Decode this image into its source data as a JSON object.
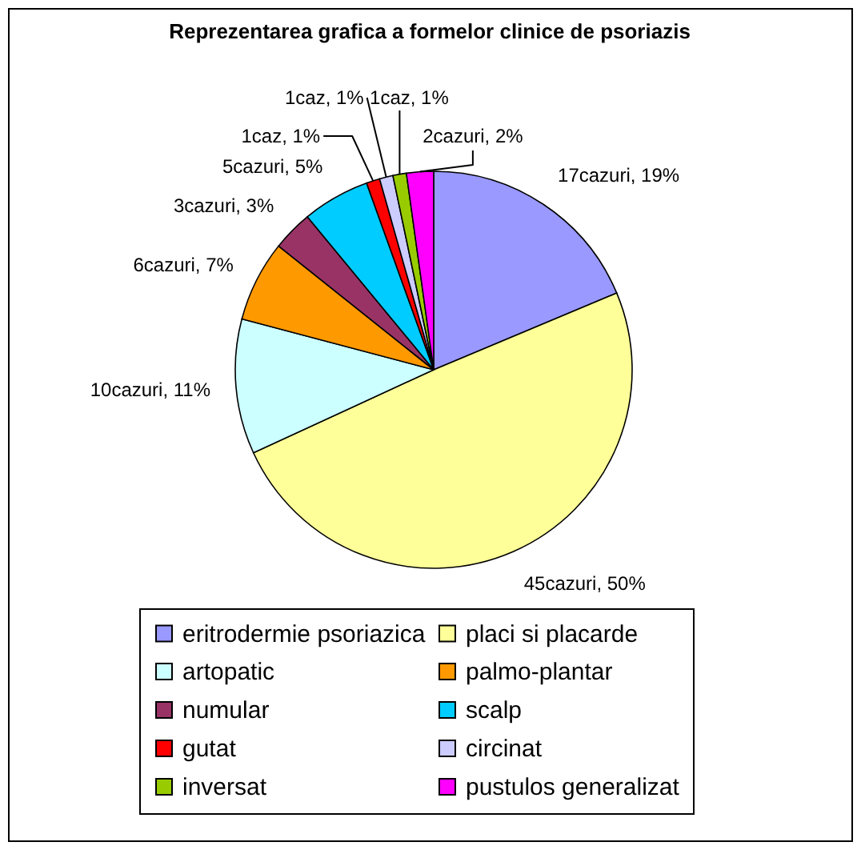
{
  "chart_data": {
    "type": "pie",
    "title": "Reprezentarea grafica a formelor clinice de psoriazis",
    "categories": [
      "eritrodermie psoriazica",
      "placi si placarde",
      "artopatic",
      "palmo-plantar",
      "numular",
      "scalp",
      "gutat",
      "circinat",
      "inversat",
      "pustulos generalizat"
    ],
    "values": [
      17,
      45,
      10,
      6,
      3,
      5,
      1,
      1,
      1,
      2
    ],
    "colors": [
      "#9999ff",
      "#ffff99",
      "#ccffff",
      "#ff9900",
      "#993366",
      "#00ccff",
      "#ff0000",
      "#ccccff",
      "#99cc00",
      "#ff00ff"
    ],
    "value_labels": [
      "17cazuri, 19%",
      "45cazuri, 50%",
      "10cazuri, 11%",
      "6cazuri, 7%",
      "3cazuri, 3%",
      "5cazuri, 5%",
      "1caz, 1%",
      "1caz, 1%",
      "1caz, 1%",
      "2cazuri, 2%"
    ],
    "legend": "bottom"
  }
}
